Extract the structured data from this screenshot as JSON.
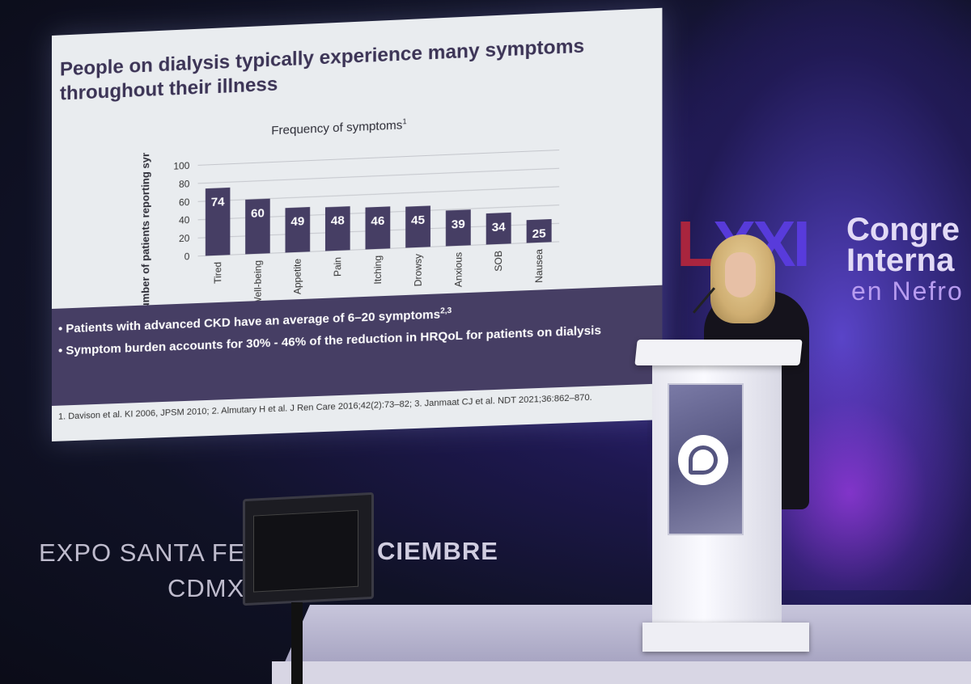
{
  "slide": {
    "title": "People on dialysis typically experience many symptoms throughout their illness",
    "bullets": [
      {
        "text": "Patients with advanced CKD have an average of 6–20 symptoms",
        "sup": "2,3"
      },
      {
        "text": "Symptom burden accounts for 30% - 46% of the reduction in HRQoL for patients on dialysis",
        "sup": ""
      }
    ],
    "references": "1. Davison et al. KI 2006, JPSM 2010; 2. Almutary H et al. J Ren Care 2016;42(2):73–82; 3. Janmaat CJ et al. NDT 2021;36:862–870."
  },
  "chart_data": {
    "type": "bar",
    "title": "Frequency of symptoms",
    "title_sup": "1",
    "categories": [
      "Tired",
      "Well-being",
      "Appetite",
      "Pain",
      "Itching",
      "Drowsy",
      "Anxious",
      "SOB",
      "Nausea"
    ],
    "values": [
      74,
      60,
      49,
      48,
      46,
      45,
      39,
      34,
      25
    ],
    "xlabel": "",
    "ylabel": "Number of patients reporting symptom (%)",
    "ylim": [
      0,
      100
    ],
    "yticks": [
      0,
      20,
      40,
      60,
      80,
      100
    ],
    "bar_color": "#463e64",
    "grid": true
  },
  "venue": {
    "line1": "EXPO SANTA FE",
    "line2": "CDMX",
    "dates": "CIEMBRE"
  },
  "congress_logo": {
    "roman_l": "L",
    "roman_rest": "XXI",
    "line1": "Congre",
    "line2": "Interna",
    "line3": "en Nefro"
  },
  "colors": {
    "slide_bg": "#e9ecef",
    "slide_band": "#463e64",
    "title": "#3c3456"
  }
}
